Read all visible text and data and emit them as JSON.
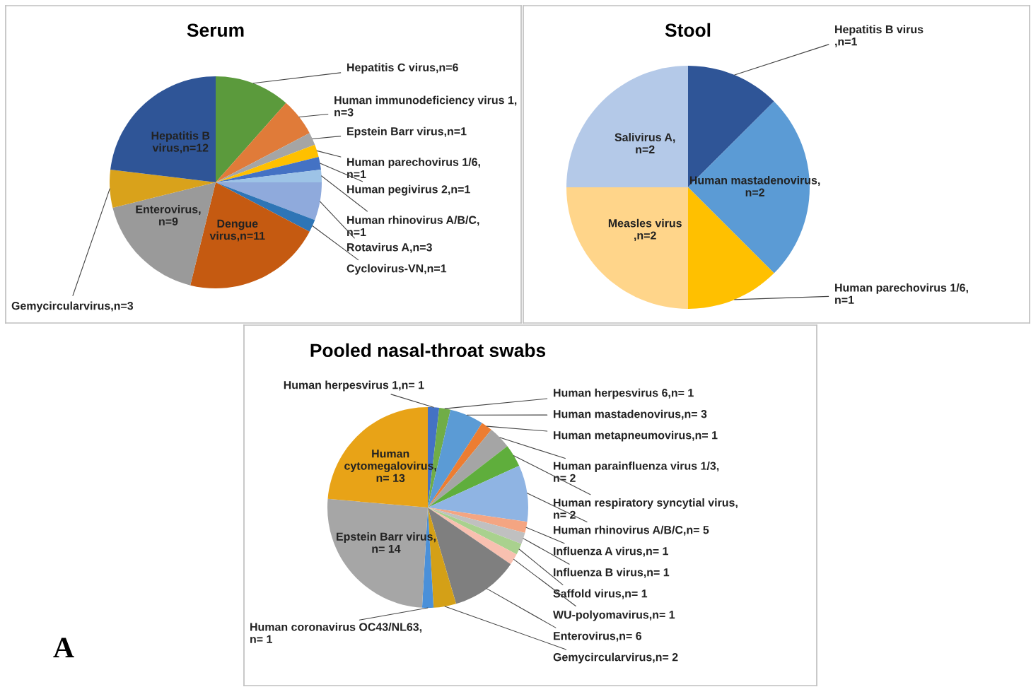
{
  "chart_data": [
    {
      "type": "pie",
      "title": "Serum",
      "categories": [
        "Hepatitis C virus,n=6",
        "Human immunodeficiency virus 1,\nn=3",
        "Epstein Barr virus,n=1",
        "Human parechovirus 1/6,\nn=1",
        "Human pegivirus 2,n=1",
        "Human rhinovirus A/B/C,\nn=1",
        "Rotavirus A,n=3",
        "Cyclovirus-VN,n=1",
        "Dengue\nvirus,n=11",
        "Enterovirus,\nn=9",
        "Gemycircularvirus,n=3",
        "Hepatitis B\nvirus,n=12"
      ],
      "values": [
        6,
        3,
        1,
        1,
        1,
        1,
        3,
        1,
        11,
        9,
        3,
        12
      ],
      "colors": [
        "#5b9a3c",
        "#e07b39",
        "#a5a5a5",
        "#ffc000",
        "#4472c4",
        "#9dc3e6",
        "#8faadc",
        "#2e75b6",
        "#c55a11",
        "#9a9a9a",
        "#d9a21b",
        "#2f5597"
      ]
    },
    {
      "type": "pie",
      "title": "Stool",
      "categories": [
        "Hepatitis B virus\n,n=1",
        "Human mastadenovirus,\nn=2",
        "Human parechovirus 1/6,\nn=1",
        "Measles virus\n,n=2",
        "Salivirus A,\nn=2"
      ],
      "values": [
        1,
        2,
        1,
        2,
        2
      ],
      "colors": [
        "#2f5597",
        "#5b9bd5",
        "#ffc000",
        "#ffd58a",
        "#b4c9e8"
      ]
    },
    {
      "type": "pie",
      "title": "Pooled nasal-throat swabs",
      "categories": [
        "Human herpesvirus 1,n= 1",
        "Human herpesvirus 6,n= 1",
        "Human mastadenovirus,n= 3",
        "Human metapneumovirus,n= 1",
        "Human parainfluenza virus 1/3,\nn= 2",
        "Human respiratory syncytial virus,\nn= 2",
        "Human rhinovirus A/B/C,n= 5",
        "Influenza A virus,n= 1",
        "Influenza B virus,n= 1",
        "Saffold virus,n= 1",
        "WU-polyomavirus,n= 1",
        "Enterovirus,n= 6",
        "Gemycircularvirus,n= 2",
        "Human coronavirus OC43/NL63,\nn= 1",
        "Epstein Barr virus,\nn= 14",
        "Human\ncytomegalovirus,\nn= 13"
      ],
      "values": [
        1,
        1,
        3,
        1,
        2,
        2,
        5,
        1,
        1,
        1,
        1,
        6,
        2,
        1,
        14,
        13
      ],
      "colors": [
        "#4472c4",
        "#70ad47",
        "#5b9bd5",
        "#ed7d31",
        "#a5a5a5",
        "#5fae3c",
        "#8fb4e3",
        "#f4a582",
        "#c0c0c0",
        "#a9d18e",
        "#f8c0b0",
        "#7f7f7f",
        "#d4a017",
        "#4a90d9",
        "#a6a6a6",
        "#e8a317"
      ],
      "annotations": [
        "A"
      ]
    }
  ]
}
